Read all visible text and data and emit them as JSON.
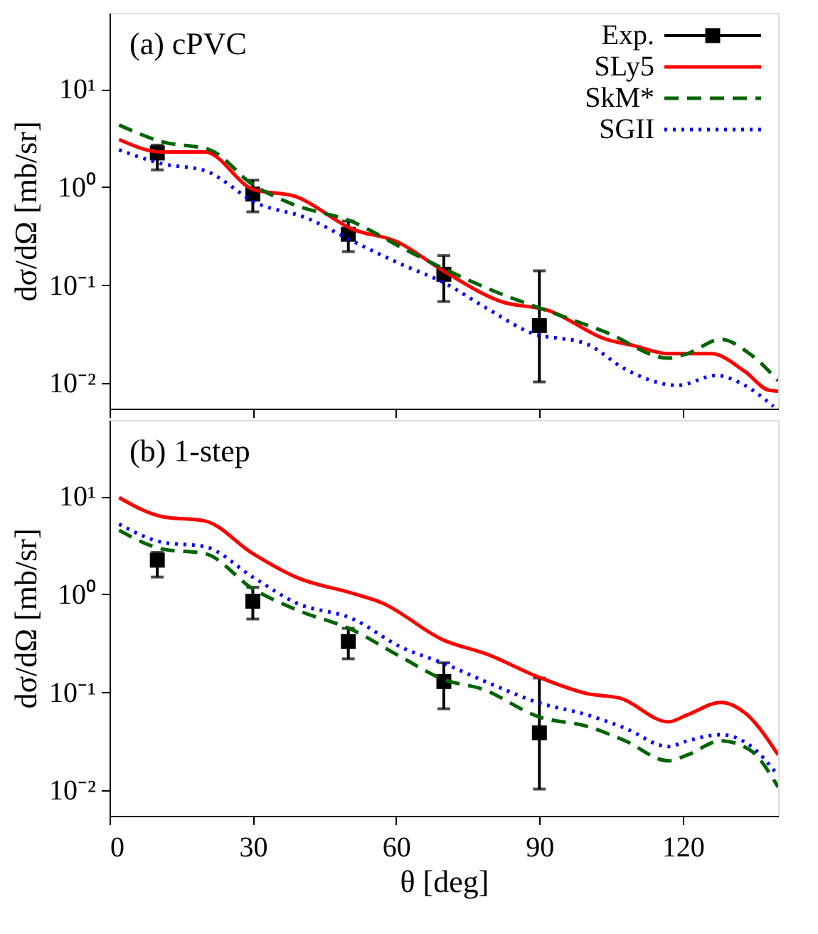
{
  "chart_data": [
    {
      "type": "line",
      "title": "(a) cPVC",
      "ylabel": "dσ/dΩ [mb/sr]",
      "log": "y",
      "xlim": [
        0,
        140
      ],
      "xticks": [
        0,
        30,
        60,
        90,
        120
      ],
      "ylim": [
        0.0055,
        60
      ],
      "yticks": [
        {
          "value": 0.01,
          "label": "10⁻²"
        },
        {
          "value": 0.1,
          "label": "10⁻¹"
        },
        {
          "value": 1,
          "label": "10⁰"
        },
        {
          "value": 10,
          "label": "10¹"
        }
      ],
      "tick_labels": "y",
      "grid": false,
      "legend": "top right",
      "series": [
        {
          "name": "Exp.",
          "type": "scatter",
          "marker": "square",
          "color": "#000000",
          "x": [
            10,
            30,
            50,
            70,
            90
          ],
          "values": [
            2.23,
            0.85,
            0.33,
            0.129,
            0.0386
          ],
          "errors": [
            [
              1.5,
              2.68
            ],
            [
              0.56,
              1.18
            ],
            [
              0.22,
              0.45
            ],
            [
              0.068,
              0.2
            ],
            [
              0.0103,
              0.14
            ]
          ]
        },
        {
          "name": "SLy5",
          "line_style": "solid",
          "color": "#ff0000",
          "x": [
            2,
            11,
            20,
            30,
            39,
            51,
            60,
            70,
            82,
            92,
            104,
            110,
            117,
            126,
            133,
            138,
            140
          ],
          "values": [
            3.06,
            2.28,
            2.28,
            0.95,
            0.8,
            0.37,
            0.28,
            0.139,
            0.068,
            0.055,
            0.028,
            0.024,
            0.02,
            0.02,
            0.0132,
            0.0085,
            0.0083
          ]
        },
        {
          "name": "SkM*",
          "line_style": "dashed",
          "color": "#006400",
          "x": [
            2,
            11,
            21,
            30,
            38,
            51,
            62,
            70,
            81,
            92,
            104,
            117,
            121,
            128,
            134,
            140
          ],
          "values": [
            4.3,
            2.9,
            2.4,
            1.06,
            0.68,
            0.44,
            0.23,
            0.147,
            0.085,
            0.054,
            0.033,
            0.018,
            0.02,
            0.028,
            0.02,
            0.0106
          ]
        },
        {
          "name": "SGII",
          "line_style": "dotted",
          "color": "#0000ff",
          "x": [
            2,
            11,
            20,
            31,
            41,
            51,
            61,
            70,
            79,
            88,
            100,
            108,
            119,
            127,
            133,
            139
          ],
          "values": [
            2.4,
            1.73,
            1.47,
            0.68,
            0.49,
            0.28,
            0.164,
            0.106,
            0.058,
            0.033,
            0.025,
            0.0139,
            0.0095,
            0.012,
            0.0095,
            0.0058
          ]
        }
      ]
    },
    {
      "type": "line",
      "title": "(b) 1-step",
      "xlabel": "θ [deg]",
      "ylabel": "dσ/dΩ [mb/sr]",
      "log": "y",
      "xlim": [
        0,
        140
      ],
      "xticks": [
        0,
        30,
        60,
        90,
        120
      ],
      "ylim": [
        0.0055,
        60
      ],
      "yticks": [
        {
          "value": 0.01,
          "label": "10⁻²"
        },
        {
          "value": 0.1,
          "label": "10⁻¹"
        },
        {
          "value": 1,
          "label": "10⁰"
        },
        {
          "value": 10,
          "label": "10¹"
        }
      ],
      "grid": false,
      "series": [
        {
          "type": "scatter",
          "marker": "square",
          "color": "#000000",
          "x": [
            10,
            30,
            50,
            70,
            90
          ],
          "values": [
            2.23,
            0.85,
            0.33,
            0.129,
            0.0386
          ],
          "errors": [
            [
              1.5,
              2.68
            ],
            [
              0.56,
              1.18
            ],
            [
              0.22,
              0.45
            ],
            [
              0.068,
              0.2
            ],
            [
              0.0103,
              0.14
            ]
          ]
        },
        {
          "line_style": "solid",
          "color": "#ff0000",
          "x": [
            2,
            11,
            20,
            30,
            39,
            51,
            57,
            70,
            79,
            90,
            100,
            107,
            117,
            121,
            128,
            133,
            140
          ],
          "values": [
            9.7,
            6.2,
            5.6,
            2.6,
            1.5,
            1.02,
            0.82,
            0.34,
            0.245,
            0.142,
            0.097,
            0.087,
            0.05,
            0.059,
            0.079,
            0.062,
            0.023
          ]
        },
        {
          "line_style": "dashed",
          "color": "#006400",
          "x": [
            2,
            11,
            20,
            30,
            39,
            51,
            61,
            70,
            78,
            90,
            100,
            108,
            117,
            121,
            128,
            134,
            140
          ],
          "values": [
            4.5,
            2.9,
            2.6,
            1.14,
            0.7,
            0.43,
            0.23,
            0.135,
            0.108,
            0.056,
            0.045,
            0.032,
            0.02,
            0.023,
            0.032,
            0.026,
            0.0108
          ]
        },
        {
          "line_style": "dotted",
          "color": "#0000ff",
          "x": [
            2,
            11,
            20,
            30,
            39,
            51,
            61,
            70,
            79,
            90,
            100,
            108,
            117,
            121,
            128,
            134,
            140
          ],
          "values": [
            5.2,
            3.4,
            3.06,
            1.5,
            0.82,
            0.56,
            0.29,
            0.197,
            0.127,
            0.078,
            0.059,
            0.043,
            0.028,
            0.032,
            0.037,
            0.029,
            0.0142
          ]
        }
      ]
    }
  ]
}
